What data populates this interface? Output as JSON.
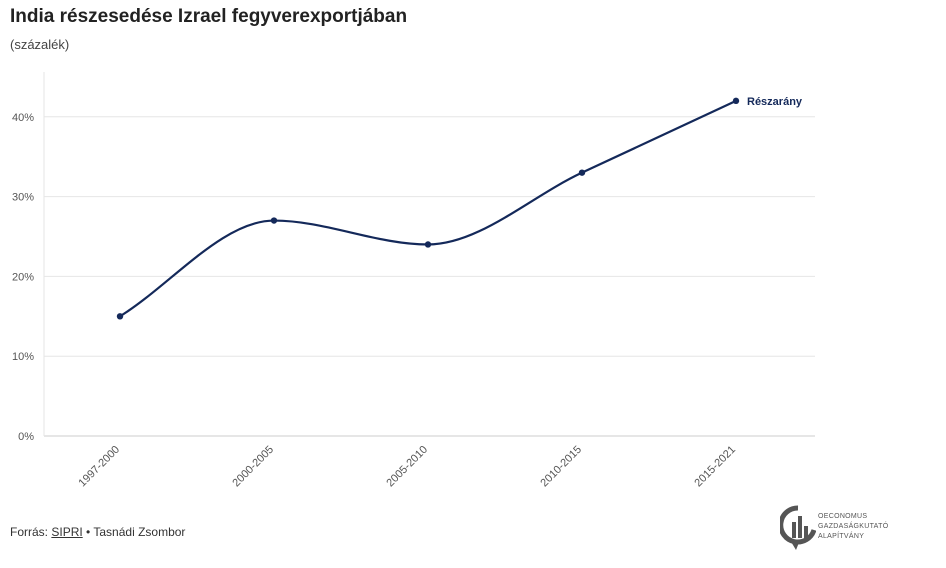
{
  "chart_data": {
    "type": "line",
    "title": "India részesedése Izrael fegyverexportjában",
    "subtitle": "(százalék)",
    "categories": [
      "1997-2000",
      "2000-2005",
      "2005-2010",
      "2010-2015",
      "2015-2021"
    ],
    "series": [
      {
        "name": "Részarány",
        "values": [
          15,
          27,
          24,
          33,
          42
        ]
      }
    ],
    "y_ticks": [
      "0%",
      "10%",
      "20%",
      "30%",
      "40%"
    ],
    "ylim": [
      0,
      45
    ],
    "grid": true,
    "legend": "end-of-line label",
    "colors": {
      "series": "#14295a",
      "grid": "#e6e6e6",
      "axis": "#cccccc"
    }
  },
  "footer": {
    "source_prefix": "Forrás:",
    "source_link": "SIPRI",
    "separator": "•",
    "author": "Tasnádi Zsombor"
  },
  "logo": {
    "line1": "OECONOMUS",
    "line2": "GAZDASÁGKUTATÓ",
    "line3": "ALAPÍTVÁNY",
    "icon": "oeconomus-logo-icon"
  }
}
